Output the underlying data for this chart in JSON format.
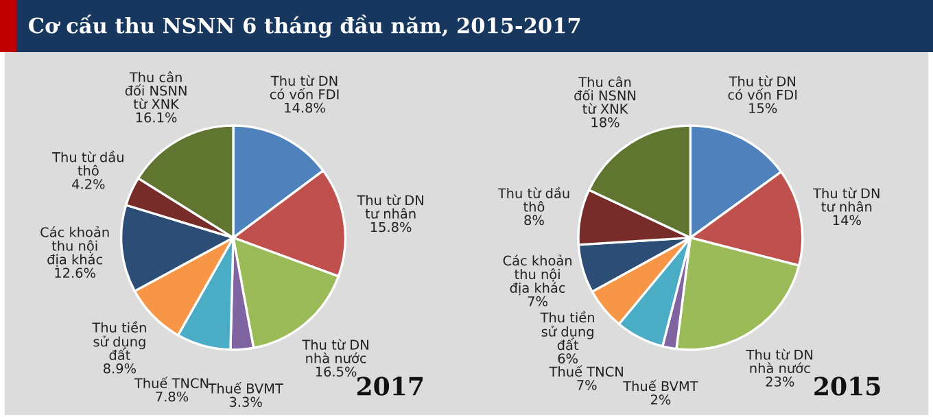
{
  "chart_data": [
    {
      "type": "pie",
      "title": "Cơ cấu thu NSNN 6 tháng đầu năm, 2015-2017",
      "subtitle": "2017",
      "categories": [
        "Thu từ DN có vốn FDI",
        "Thu từ DN tư nhân",
        "Thu từ DN nhà nước",
        "Thuế BVMT",
        "Thuế TNCN",
        "Thu tiền sử dụng đất",
        "Các khoản thu nội địa khác",
        "Thu từ dầu thô",
        "Thu cân đối NSNN từ XNK"
      ],
      "values": [
        14.8,
        15.8,
        16.5,
        3.3,
        7.8,
        8.9,
        12.6,
        4.2,
        16.1
      ],
      "value_labels": [
        "14.8%",
        "15.8%",
        "16.5%",
        "3.3%",
        "7.8%",
        "8.9%",
        "12.6%",
        "4.2%",
        "16.1%"
      ],
      "colors": [
        "#4f81bd",
        "#c0504d",
        "#9bbb59",
        "#8064a2",
        "#4bacc6",
        "#f79646",
        "#2c4d75",
        "#772c2a",
        "#5f7530"
      ],
      "legend": false
    },
    {
      "type": "pie",
      "subtitle": "2015",
      "categories": [
        "Thu từ DN có vốn FDI",
        "Thu từ DN tư nhân",
        "Thu từ DN nhà nước",
        "Thuế BVMT",
        "Thuế TNCN",
        "Thu tiền sử dụng đất",
        "Các khoản thu nội địa khác",
        "Thu từ dầu thô",
        "Thu cân đối NSNN từ XNK"
      ],
      "values": [
        15,
        14,
        23,
        2,
        7,
        6,
        7,
        8,
        18
      ],
      "value_labels": [
        "15%",
        "14%",
        "23%",
        "2%",
        "7%",
        "6%",
        "7%",
        "8%",
        "18%"
      ],
      "colors": [
        "#4f81bd",
        "#c0504d",
        "#9bbb59",
        "#8064a2",
        "#4bacc6",
        "#f79646",
        "#2c4d75",
        "#772c2a",
        "#5f7530"
      ],
      "legend": false
    }
  ]
}
